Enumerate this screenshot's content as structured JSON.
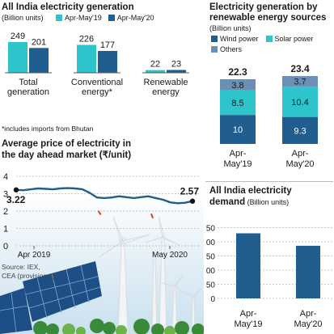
{
  "colors": {
    "apr_may_19": "#2ec4cc",
    "apr_may_20": "#1f5e8f",
    "wind": "#1f5e8f",
    "solar": "#2ec4cc",
    "others": "#6b8fb5",
    "line": "#1f5e8f",
    "sky": "#cfe4f1",
    "demand_bar": "#1f5e8f"
  },
  "panel1": {
    "title": "All India electricity generation",
    "unit": "(Billion units)",
    "legend": [
      "Apr-May'19",
      "Apr-May'20"
    ],
    "footnote": "*includes imports from Bhutan"
  },
  "panel2": {
    "title": "Electricity generation by",
    "title2": "renewable energy sources",
    "unit": "(Billion units)",
    "legend": [
      "Wind power",
      "Solar power",
      "Others"
    ]
  },
  "panel3": {
    "title": "Average price of electricity in",
    "title2": "the day ahead market (₹/unit)",
    "source1": "Source: IEX,",
    "source2": "CEA (provisional)"
  },
  "panel4": {
    "title": "All India electricity",
    "title2_bold": "demand",
    "title2_unit": " (Billion units)"
  },
  "chart_data": [
    {
      "type": "bar",
      "title": "All India electricity generation",
      "unit": "(Billion units)",
      "categories": [
        [
          "Total",
          "generation"
        ],
        [
          "Conventional",
          "energy*"
        ],
        [
          "Renewable",
          "energy"
        ]
      ],
      "series": [
        {
          "name": "Apr-May'19",
          "values": [
            249,
            226,
            22
          ]
        },
        {
          "name": "Apr-May'20",
          "values": [
            201,
            177,
            23
          ]
        }
      ],
      "ylim": [
        0,
        260
      ]
    },
    {
      "type": "bar",
      "stacked": true,
      "title": "Electricity generation by renewable energy sources",
      "unit": "(Billion units)",
      "categories": [
        [
          "Apr-",
          "May'19"
        ],
        [
          "Apr-",
          "May'20"
        ]
      ],
      "series": [
        {
          "name": "Wind power",
          "values": [
            10,
            9.3
          ]
        },
        {
          "name": "Solar power",
          "values": [
            8.5,
            10.4
          ]
        },
        {
          "name": "Others",
          "values": [
            3.8,
            3.7
          ]
        }
      ],
      "totals": [
        "22.3",
        "23.4"
      ],
      "ylim": [
        0,
        24
      ]
    },
    {
      "type": "line",
      "title": "Average price of electricity in the day ahead market (₹/unit)",
      "yticks": [
        0,
        1,
        2,
        3,
        4
      ],
      "ylim": [
        0,
        4.2
      ],
      "x_tick_labels": [
        "Apr 2019",
        "May 2020"
      ],
      "start_label": "3.22",
      "end_label": "2.57",
      "values": [
        3.22,
        3.2,
        3.25,
        3.3,
        3.28,
        3.25,
        3.3,
        3.32,
        3.3,
        3.25,
        3.05,
        2.78,
        2.75,
        2.78,
        2.85,
        2.8,
        2.75,
        2.8,
        2.85,
        2.75,
        2.65,
        2.5,
        2.45,
        2.48,
        2.57
      ],
      "grid": true
    },
    {
      "type": "bar",
      "title": "All India electricity demand (Billion units)",
      "categories": [
        [
          "Apr-",
          "May'19"
        ],
        [
          "Apr-",
          "May'20"
        ]
      ],
      "values": [
        230,
        186
      ],
      "yticks": [
        0,
        50,
        100,
        150,
        200,
        250
      ],
      "ylim": [
        0,
        260
      ],
      "grid": true
    }
  ]
}
